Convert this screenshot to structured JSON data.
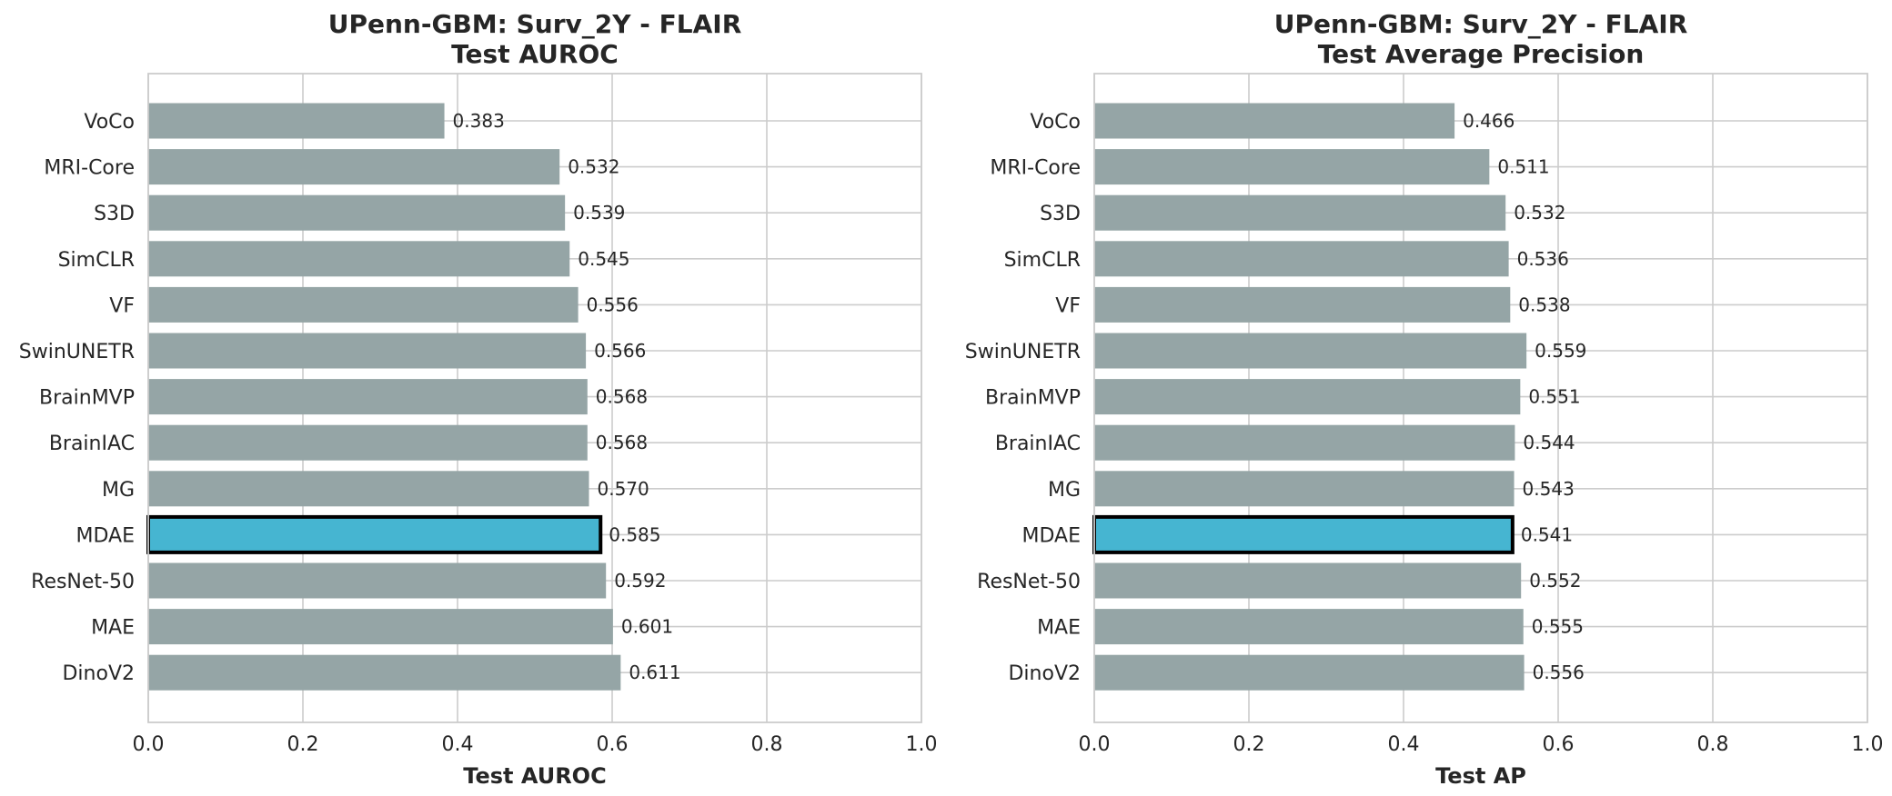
{
  "chart_data": [
    {
      "type": "bar",
      "orientation": "horizontal",
      "title": [
        "UPenn-GBM: Surv_2Y - FLAIR",
        "Test AUROC"
      ],
      "xlabel": "Test AUROC",
      "ylabel": "",
      "xlim": [
        0,
        1
      ],
      "xticks": [
        "0.0",
        "0.2",
        "0.4",
        "0.6",
        "0.8",
        "1.0"
      ],
      "grid": true,
      "highlight": "MDAE",
      "colors": {
        "default": "#95a5a6",
        "highlight": "#46b5d1",
        "highlight_edge": "#000000"
      },
      "categories": [
        "VoCo",
        "MRI-Core",
        "S3D",
        "SimCLR",
        "VF",
        "SwinUNETR",
        "BrainMVP",
        "BrainIAC",
        "MG",
        "MDAE",
        "ResNet-50",
        "MAE",
        "DinoV2"
      ],
      "values": [
        0.383,
        0.532,
        0.539,
        0.545,
        0.556,
        0.566,
        0.568,
        0.568,
        0.57,
        0.585,
        0.592,
        0.601,
        0.611
      ],
      "labels": [
        "0.383",
        "0.532",
        "0.539",
        "0.545",
        "0.556",
        "0.566",
        "0.568",
        "0.568",
        "0.570",
        "0.585",
        "0.592",
        "0.601",
        "0.611"
      ]
    },
    {
      "type": "bar",
      "orientation": "horizontal",
      "title": [
        "UPenn-GBM: Surv_2Y - FLAIR",
        "Test Average Precision"
      ],
      "xlabel": "Test AP",
      "ylabel": "",
      "xlim": [
        0,
        1
      ],
      "xticks": [
        "0.0",
        "0.2",
        "0.4",
        "0.6",
        "0.8",
        "1.0"
      ],
      "grid": true,
      "highlight": "MDAE",
      "colors": {
        "default": "#95a5a6",
        "highlight": "#46b5d1",
        "highlight_edge": "#000000"
      },
      "categories": [
        "VoCo",
        "MRI-Core",
        "S3D",
        "SimCLR",
        "VF",
        "SwinUNETR",
        "BrainMVP",
        "BrainIAC",
        "MG",
        "MDAE",
        "ResNet-50",
        "MAE",
        "DinoV2"
      ],
      "values": [
        0.466,
        0.511,
        0.532,
        0.536,
        0.538,
        0.559,
        0.551,
        0.544,
        0.543,
        0.541,
        0.552,
        0.555,
        0.556
      ],
      "labels": [
        "0.466",
        "0.511",
        "0.532",
        "0.536",
        "0.538",
        "0.559",
        "0.551",
        "0.544",
        "0.543",
        "0.541",
        "0.552",
        "0.555",
        "0.556"
      ]
    }
  ]
}
